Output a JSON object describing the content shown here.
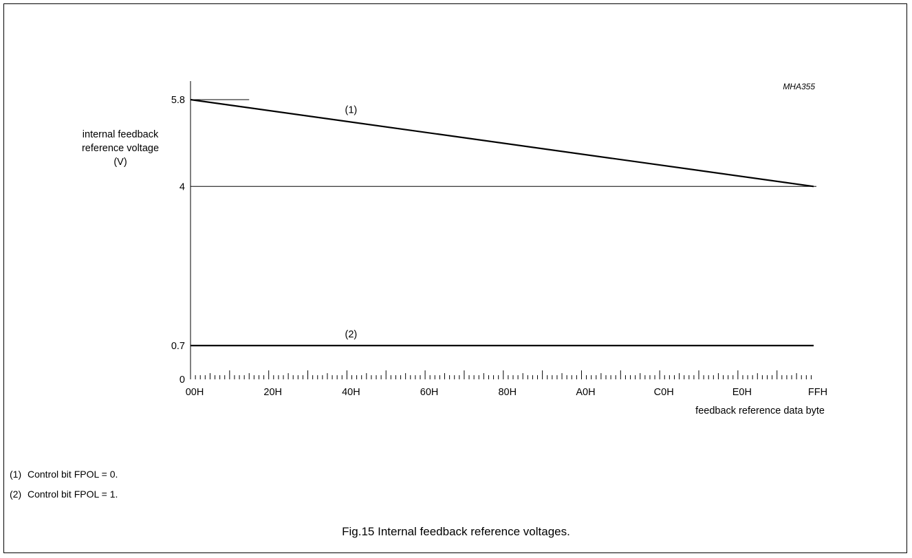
{
  "figure": {
    "code": "MHA355",
    "caption": "Fig.15  Internal feedback reference voltages.",
    "notes": [
      {
        "marker": "(1)",
        "text": "Control bit FPOL = 0."
      },
      {
        "marker": "(2)",
        "text": "Control bit FPOL = 1."
      }
    ]
  },
  "chart_data": {
    "type": "line",
    "title": "",
    "ylabel": [
      "internal feedback",
      "reference voltage",
      "(V)"
    ],
    "xlabel": "feedback reference data byte",
    "xlim": [
      0,
      255
    ],
    "ylim": [
      0,
      5.8
    ],
    "x_ticks": [
      {
        "value": 0,
        "label": "00H"
      },
      {
        "value": 32,
        "label": "20H"
      },
      {
        "value": 64,
        "label": "40H"
      },
      {
        "value": 96,
        "label": "60H"
      },
      {
        "value": 128,
        "label": "80H"
      },
      {
        "value": 160,
        "label": "A0H"
      },
      {
        "value": 192,
        "label": "C0H"
      },
      {
        "value": 224,
        "label": "E0H"
      },
      {
        "value": 255,
        "label": "FFH"
      }
    ],
    "minor_tick_step": 2,
    "y_ticks": [
      {
        "value": 0,
        "label": "0"
      },
      {
        "value": 0.7,
        "label": "0.7"
      },
      {
        "value": 4,
        "label": "4"
      },
      {
        "value": 5.8,
        "label": "5.8"
      }
    ],
    "series": [
      {
        "label": "(1)",
        "x": [
          0,
          255
        ],
        "y": [
          5.8,
          4.0
        ],
        "label_at": 64
      },
      {
        "label": "(2)",
        "x": [
          0,
          255
        ],
        "y": [
          0.7,
          0.7
        ],
        "label_at": 64
      }
    ],
    "reference_lines": [
      {
        "axis": "y",
        "value": 4,
        "from": 0,
        "to": 255
      },
      {
        "axis": "y",
        "value": 5.8,
        "from": 0,
        "to": 24
      }
    ]
  }
}
